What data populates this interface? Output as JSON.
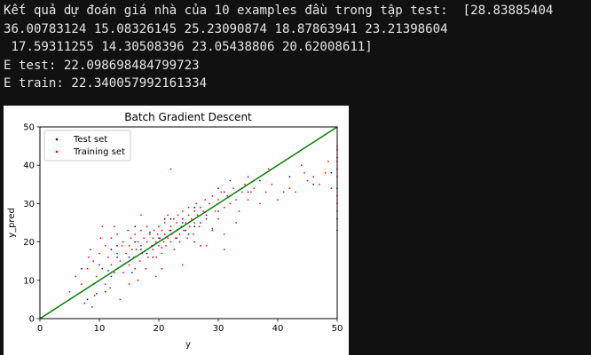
{
  "console": {
    "lines": [
      "Kết quả dự đoán giá nhà của 10 examples đầu trong tập test:  [28.83885404",
      "36.00783124 15.08326145 25.23090874 18.87863941 23.21398604",
      " 17.59311255 14.30508396 23.05438806 20.62008611]",
      "E test: 22.098698484799723",
      "E train: 22.340057992161334"
    ]
  },
  "colors": {
    "background": "#111111",
    "text": "#e6e6e6",
    "test": "#0000ff",
    "train": "#ff0000",
    "line": "#008000"
  },
  "chart_data": {
    "type": "scatter",
    "title": "Batch Gradient Descent",
    "xlabel": "y",
    "ylabel": "y_pred",
    "xlim": [
      0,
      50
    ],
    "ylim": [
      0,
      50
    ],
    "xticks": [
      "0",
      "10",
      "20",
      "30",
      "40",
      "50"
    ],
    "yticks": [
      "0",
      "10",
      "20",
      "30",
      "40",
      "50"
    ],
    "grid": false,
    "legend_position": "top-left",
    "reference_line": {
      "x": [
        0,
        50
      ],
      "y": [
        0,
        50
      ]
    },
    "series": [
      {
        "name": "Test set",
        "color": "#0000ff",
        "points": [
          [
            28.8,
            28.8
          ],
          [
            36.0,
            36.0
          ],
          [
            15.1,
            15.1
          ],
          [
            25.2,
            25.2
          ],
          [
            18.9,
            18.9
          ],
          [
            23.2,
            23.2
          ],
          [
            17.6,
            17.6
          ],
          [
            14.3,
            14.3
          ],
          [
            23.1,
            23.1
          ],
          [
            20.6,
            20.6
          ],
          [
            12.0,
            18.0
          ],
          [
            21.0,
            22.0
          ],
          [
            16.0,
            20.0
          ],
          [
            22.0,
            23.0
          ],
          [
            19.0,
            19.0
          ],
          [
            13.0,
            16.0
          ],
          [
            24.0,
            25.0
          ],
          [
            26.0,
            24.0
          ],
          [
            31.0,
            33.0
          ],
          [
            33.0,
            33.0
          ],
          [
            35.0,
            33.0
          ],
          [
            37.0,
            36.0
          ],
          [
            30.0,
            34.0
          ],
          [
            32.0,
            36.0
          ],
          [
            18.0,
            17.0
          ],
          [
            20.0,
            21.0
          ],
          [
            24.0,
            26.0
          ],
          [
            25.0,
            22.0
          ],
          [
            15.0,
            16.0
          ],
          [
            10.0,
            14.0
          ],
          [
            9.0,
            9.0
          ],
          [
            8.0,
            5.0
          ],
          [
            11.0,
            7.0
          ],
          [
            12.0,
            11.0
          ],
          [
            14.0,
            14.0
          ],
          [
            17.0,
            18.0
          ],
          [
            16.0,
            24.0
          ],
          [
            19.0,
            16.0
          ],
          [
            21.0,
            26.0
          ],
          [
            23.0,
            21.0
          ],
          [
            27.0,
            25.0
          ],
          [
            28.0,
            27.0
          ],
          [
            30.0,
            28.0
          ],
          [
            34.0,
            34.0
          ],
          [
            42.0,
            37.0
          ],
          [
            46.0,
            35.0
          ],
          [
            49.0,
            38.0
          ],
          [
            50.0,
            34.0
          ],
          [
            50.0,
            26.0
          ],
          [
            50.0,
            44.0
          ],
          [
            7.0,
            13.0
          ],
          [
            22.0,
            26.0
          ],
          [
            26.0,
            29.0
          ],
          [
            13.0,
            19.0
          ],
          [
            15.5,
            12.0
          ],
          [
            18.5,
            22.5
          ],
          [
            20.5,
            18.5
          ],
          [
            24.5,
            23.0
          ],
          [
            11.5,
            12.5
          ],
          [
            9.5,
            6.5
          ]
        ]
      },
      {
        "name": "Training set",
        "color": "#ff0000",
        "points": [
          [
            5.0,
            7.0
          ],
          [
            6.0,
            11.0
          ],
          [
            7.0,
            9.0
          ],
          [
            7.5,
            4.0
          ],
          [
            8.0,
            13.0
          ],
          [
            8.5,
            18.0
          ],
          [
            8.8,
            3.0
          ],
          [
            9.0,
            15.0
          ],
          [
            9.5,
            11.0
          ],
          [
            10.0,
            17.0
          ],
          [
            10.2,
            21.0
          ],
          [
            10.5,
            13.0
          ],
          [
            11.0,
            9.0
          ],
          [
            11.0,
            19.0
          ],
          [
            11.5,
            16.0
          ],
          [
            12.0,
            21.0
          ],
          [
            12.0,
            14.0
          ],
          [
            12.5,
            12.0
          ],
          [
            13.0,
            17.0
          ],
          [
            13.0,
            22.0
          ],
          [
            13.5,
            15.0
          ],
          [
            13.8,
            19.0
          ],
          [
            14.0,
            20.0
          ],
          [
            14.0,
            12.0
          ],
          [
            14.5,
            17.0
          ],
          [
            14.8,
            23.0
          ],
          [
            15.0,
            19.0
          ],
          [
            15.0,
            14.0
          ],
          [
            15.3,
            21.0
          ],
          [
            15.5,
            18.0
          ],
          [
            15.8,
            16.0
          ],
          [
            16.0,
            22.0
          ],
          [
            16.0,
            13.0
          ],
          [
            16.2,
            18.0
          ],
          [
            16.5,
            20.0
          ],
          [
            16.8,
            15.0
          ],
          [
            17.0,
            23.0
          ],
          [
            17.0,
            19.0
          ],
          [
            17.2,
            17.0
          ],
          [
            17.5,
            21.0
          ],
          [
            17.8,
            13.0
          ],
          [
            18.0,
            20.0
          ],
          [
            18.0,
            24.0
          ],
          [
            18.2,
            16.0
          ],
          [
            18.5,
            22.0
          ],
          [
            18.8,
            19.0
          ],
          [
            19.0,
            21.0
          ],
          [
            19.0,
            18.0
          ],
          [
            19.2,
            23.0
          ],
          [
            19.5,
            20.0
          ],
          [
            19.6,
            16.0
          ],
          [
            19.8,
            22.0
          ],
          [
            20.0,
            19.0
          ],
          [
            20.0,
            24.0
          ],
          [
            20.2,
            21.0
          ],
          [
            20.5,
            23.0
          ],
          [
            20.5,
            17.0
          ],
          [
            20.8,
            20.0
          ],
          [
            21.0,
            22.0
          ],
          [
            21.0,
            25.0
          ],
          [
            21.2,
            19.0
          ],
          [
            21.5,
            21.0
          ],
          [
            21.5,
            27.0
          ],
          [
            21.8,
            23.0
          ],
          [
            22.0,
            20.0
          ],
          [
            22.0,
            24.0
          ],
          [
            22.2,
            22.0
          ],
          [
            22.5,
            26.0
          ],
          [
            22.6,
            18.0
          ],
          [
            22.8,
            21.0
          ],
          [
            23.0,
            25.0
          ],
          [
            23.0,
            23.0
          ],
          [
            23.2,
            27.0
          ],
          [
            23.5,
            22.0
          ],
          [
            23.5,
            20.0
          ],
          [
            23.8,
            24.0
          ],
          [
            24.0,
            26.0
          ],
          [
            24.0,
            28.0
          ],
          [
            24.2,
            23.0
          ],
          [
            24.5,
            25.0
          ],
          [
            24.8,
            21.0
          ],
          [
            25.0,
            27.0
          ],
          [
            25.0,
            29.0
          ],
          [
            25.2,
            24.0
          ],
          [
            25.5,
            26.0
          ],
          [
            25.8,
            22.0
          ],
          [
            26.0,
            28.0
          ],
          [
            26.0,
            25.0
          ],
          [
            26.3,
            30.0
          ],
          [
            26.5,
            27.0
          ],
          [
            26.8,
            24.0
          ],
          [
            27.0,
            29.0
          ],
          [
            27.0,
            19.0
          ],
          [
            27.5,
            28.0
          ],
          [
            27.8,
            31.0
          ],
          [
            28.0,
            26.0
          ],
          [
            28.0,
            19.0
          ],
          [
            28.5,
            30.0
          ],
          [
            29.0,
            32.0
          ],
          [
            29.0,
            23.0
          ],
          [
            29.5,
            28.0
          ],
          [
            30.0,
            31.0
          ],
          [
            30.0,
            26.0
          ],
          [
            30.5,
            33.0
          ],
          [
            31.0,
            29.0
          ],
          [
            31.0,
            22.0
          ],
          [
            31.5,
            32.0
          ],
          [
            32.0,
            30.0
          ],
          [
            32.5,
            34.0
          ],
          [
            33.0,
            31.0
          ],
          [
            33.0,
            25.0
          ],
          [
            34.0,
            33.0
          ],
          [
            34.5,
            35.0
          ],
          [
            35.0,
            31.0
          ],
          [
            35.5,
            33.0
          ],
          [
            36.0,
            34.0
          ],
          [
            37.0,
            30.0
          ],
          [
            38.0,
            33.0
          ],
          [
            39.0,
            35.0
          ],
          [
            40.0,
            31.0
          ],
          [
            41.0,
            33.0
          ],
          [
            42.0,
            34.0
          ],
          [
            43.0,
            33.0
          ],
          [
            44.0,
            40.0
          ],
          [
            45.0,
            36.0
          ],
          [
            46.0,
            37.0
          ],
          [
            47.0,
            35.0
          ],
          [
            48.0,
            38.0
          ],
          [
            48.5,
            41.0
          ],
          [
            49.0,
            34.0
          ],
          [
            50.0,
            45.0
          ],
          [
            50.0,
            42.0
          ],
          [
            50.0,
            39.0
          ],
          [
            50.0,
            37.0
          ],
          [
            50.0,
            32.0
          ],
          [
            50.0,
            30.0
          ],
          [
            50.0,
            28.0
          ],
          [
            50.0,
            23.0
          ],
          [
            50.0,
            41.0
          ],
          [
            22.0,
            39.0
          ],
          [
            27.0,
            19.0
          ],
          [
            29.0,
            23.5
          ],
          [
            19.5,
            11.0
          ],
          [
            15.0,
            9.0
          ],
          [
            13.5,
            5.0
          ],
          [
            10.5,
            24.0
          ],
          [
            17.0,
            27.0
          ],
          [
            24.0,
            14.0
          ],
          [
            31.0,
            18.0
          ],
          [
            35.0,
            37.0
          ],
          [
            12.5,
            24.0
          ],
          [
            16.5,
            10.0
          ],
          [
            20.5,
            13.0
          ],
          [
            26.0,
            20.0
          ],
          [
            33.5,
            28.0
          ],
          [
            38.5,
            39.0
          ],
          [
            44.5,
            38.0
          ],
          [
            8.2,
            16.0
          ],
          [
            9.2,
            6.0
          ],
          [
            11.8,
            8.0
          ]
        ]
      }
    ]
  }
}
